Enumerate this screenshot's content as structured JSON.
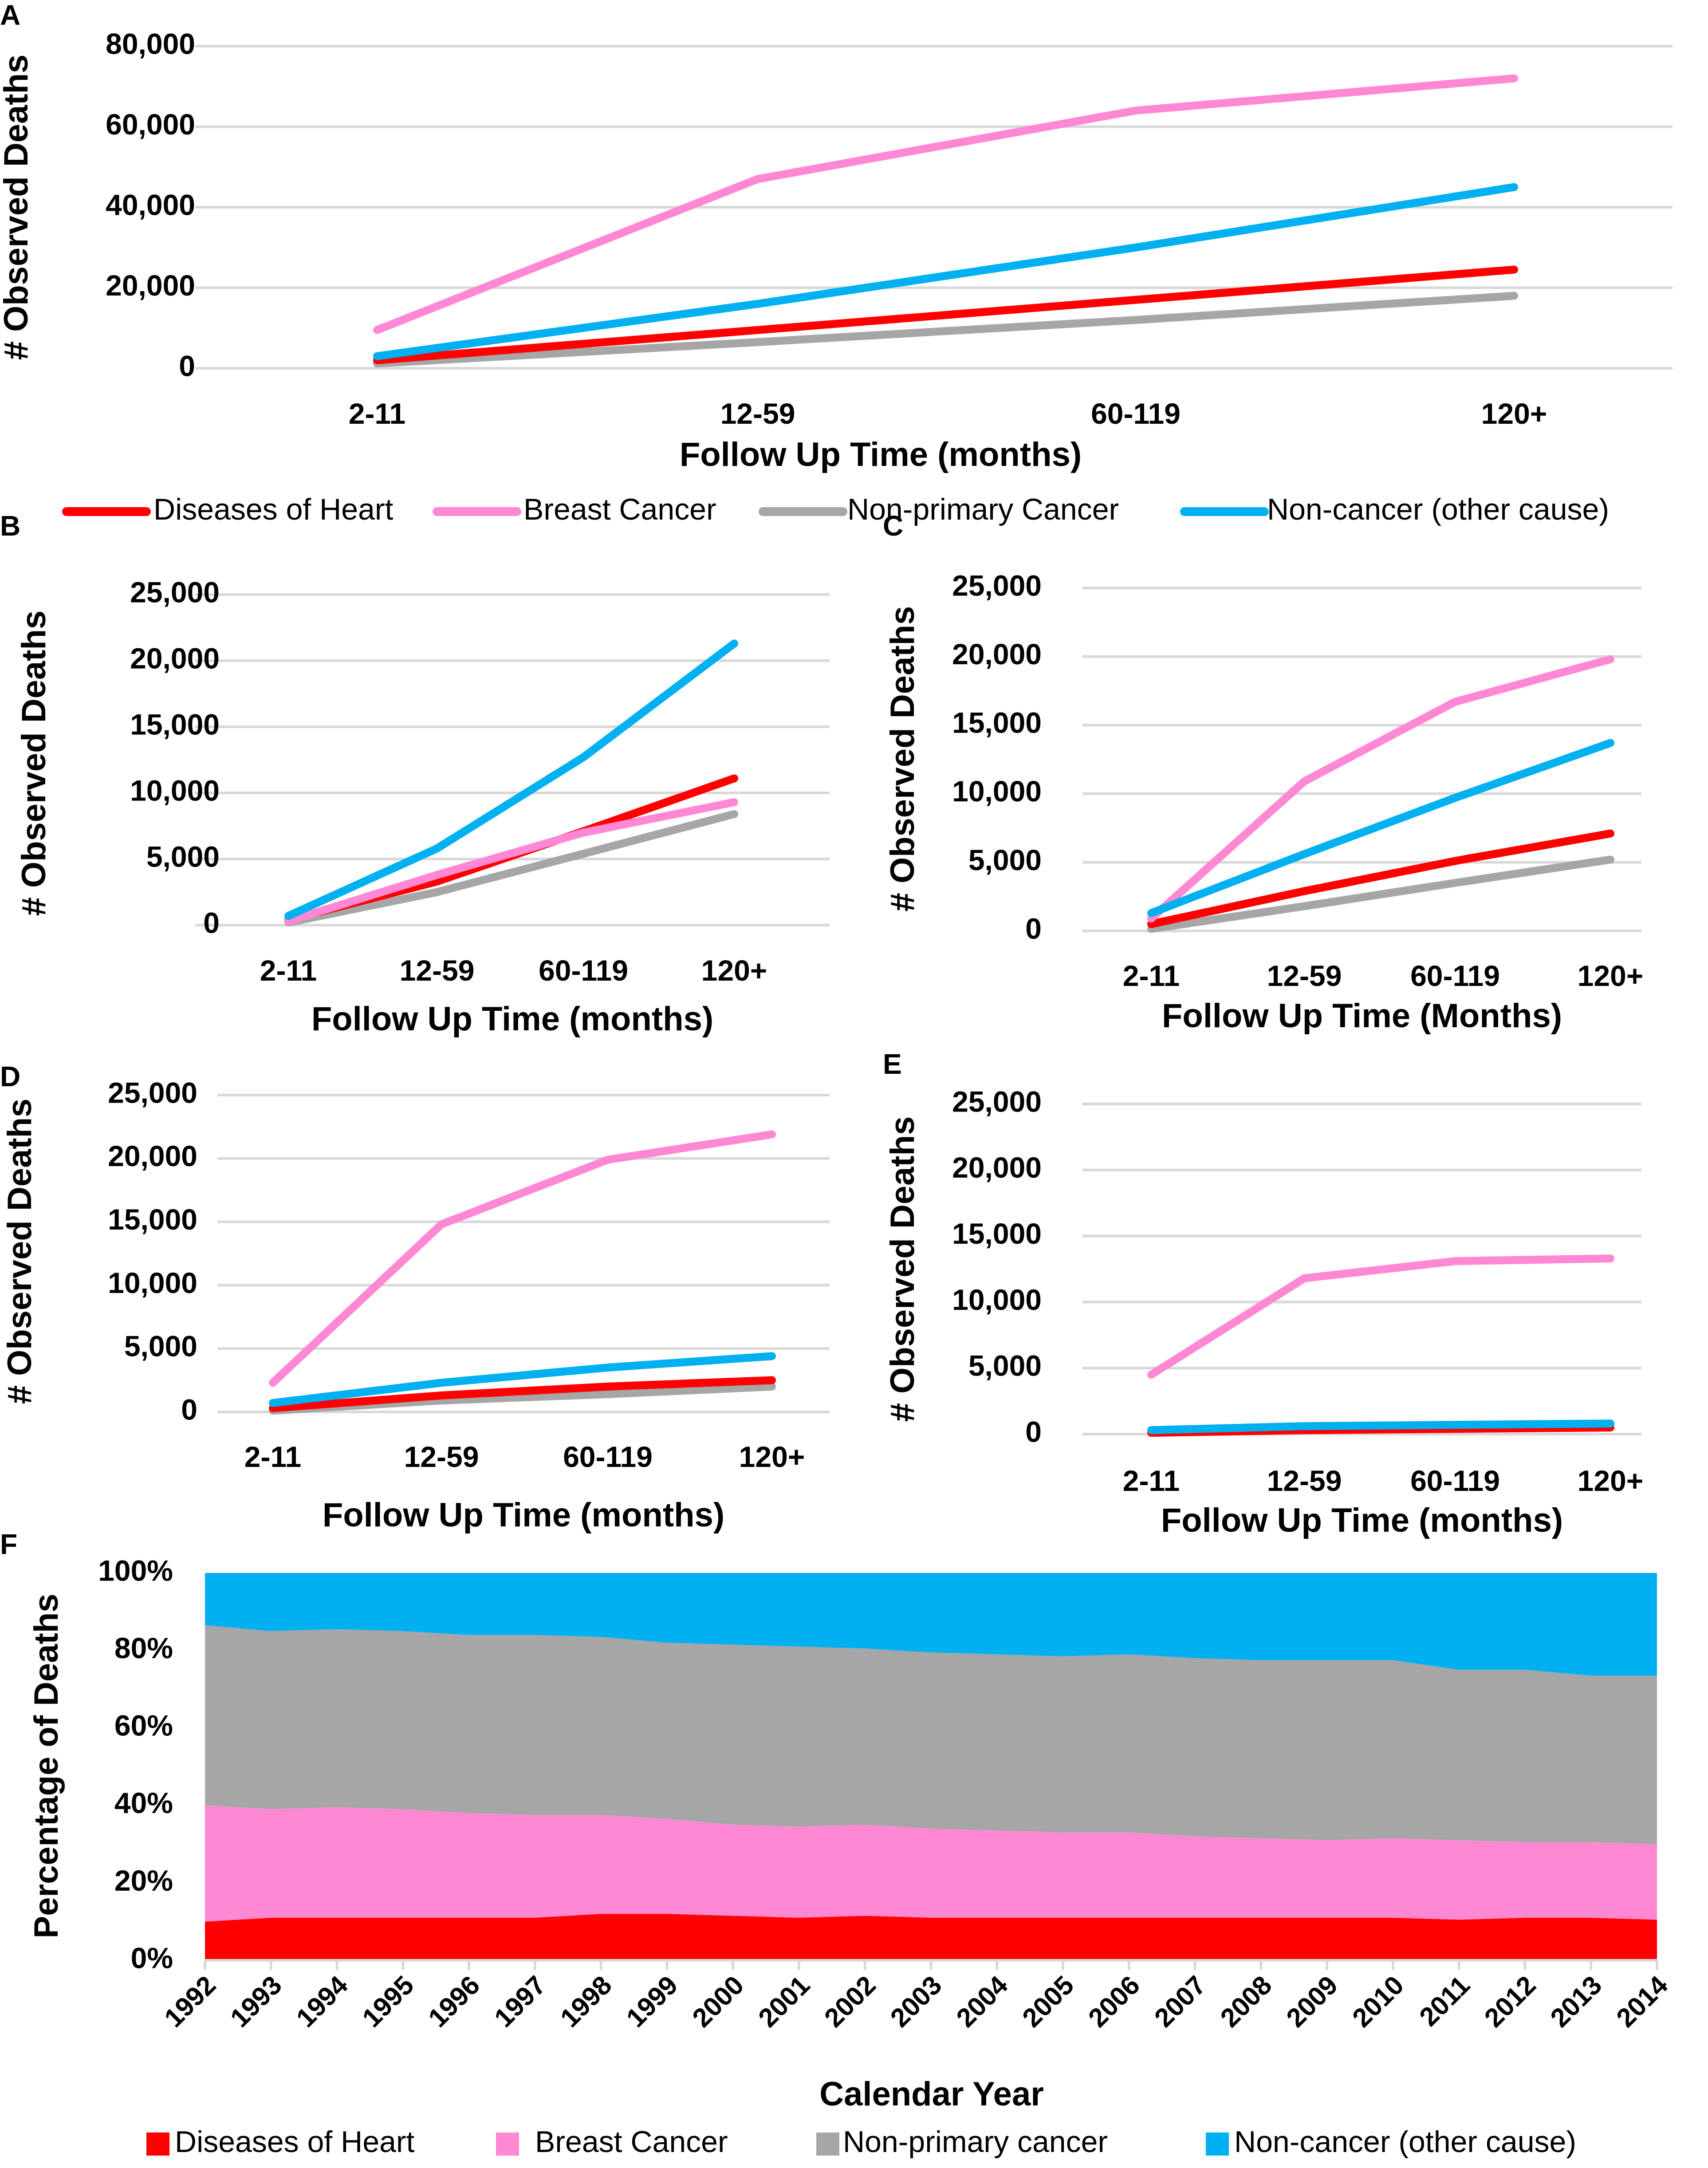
{
  "colors": {
    "heart": "#ff0000",
    "breast": "#ff88d4",
    "nonprimary": "#a6a6a6",
    "noncancer": "#00b0f0"
  },
  "legend_top": {
    "heart": "Diseases of Heart",
    "breast": "Breast Cancer",
    "nonprimary": "Non-primary Cancer",
    "noncancer": "Non-cancer (other cause)"
  },
  "legend_bottom": {
    "heart": "Diseases of Heart",
    "breast": "Breast Cancer",
    "nonprimary": "Non-primary cancer",
    "noncancer": "Non-cancer (other cause)"
  },
  "chart_data": [
    {
      "panel": "A",
      "type": "line",
      "categories": [
        "2-11",
        "12-59",
        "60-119",
        "120+"
      ],
      "xlabel": "Follow Up Time (months)",
      "ylabel": "# Observed Deaths",
      "ylim": [
        0,
        80000
      ],
      "yticks": [
        0,
        20000,
        40000,
        60000,
        80000
      ],
      "ytick_labels": [
        "0",
        "20,000",
        "40,000",
        "60,000",
        "80,000"
      ],
      "series": [
        {
          "key": "heart",
          "name": "Diseases of Heart",
          "values": [
            2000,
            9500,
            17000,
            24500
          ]
        },
        {
          "key": "breast",
          "name": "Breast Cancer",
          "values": [
            9500,
            47000,
            64000,
            72000
          ]
        },
        {
          "key": "nonprimary",
          "name": "Non-primary Cancer",
          "values": [
            1200,
            6500,
            12000,
            18000
          ]
        },
        {
          "key": "noncancer",
          "name": "Non-cancer (other cause)",
          "values": [
            3000,
            16000,
            30000,
            45000
          ]
        }
      ]
    },
    {
      "panel": "B",
      "type": "line",
      "categories": [
        "2-11",
        "12-59",
        "60-119",
        "120+"
      ],
      "xlabel": "Follow Up Time (months)",
      "ylabel": "# Observed Deaths",
      "ylim": [
        0,
        25000
      ],
      "yticks": [
        0,
        5000,
        10000,
        15000,
        20000,
        25000
      ],
      "ytick_labels": [
        "0",
        "5,000",
        "10,000",
        "15,000",
        "20,000",
        "25,000"
      ],
      "series": [
        {
          "key": "heart",
          "name": "Diseases of Heart",
          "values": [
            400,
            3300,
            7100,
            11100
          ]
        },
        {
          "key": "breast",
          "name": "Breast Cancer",
          "values": [
            300,
            3800,
            7000,
            9300
          ]
        },
        {
          "key": "nonprimary",
          "name": "Non-primary Cancer",
          "values": [
            200,
            2500,
            5400,
            8400
          ]
        },
        {
          "key": "noncancer",
          "name": "Non-cancer (other cause)",
          "values": [
            700,
            5800,
            12700,
            21300
          ]
        }
      ]
    },
    {
      "panel": "C",
      "type": "line",
      "categories": [
        "2-11",
        "12-59",
        "60-119",
        "120+"
      ],
      "xlabel": "Follow Up Time (Months)",
      "ylabel": "# Observed Deaths",
      "ylim": [
        0,
        25000
      ],
      "yticks": [
        0,
        5000,
        10000,
        15000,
        20000,
        25000
      ],
      "ytick_labels": [
        "0",
        "5,000",
        "10,000",
        "15,000",
        "20,000",
        "25,000"
      ],
      "series": [
        {
          "key": "heart",
          "name": "Diseases of Heart",
          "values": [
            500,
            2900,
            5100,
            7100
          ]
        },
        {
          "key": "breast",
          "name": "Breast Cancer",
          "values": [
            900,
            10900,
            16700,
            19800
          ]
        },
        {
          "key": "nonprimary",
          "name": "Non-primary Cancer",
          "values": [
            150,
            1800,
            3500,
            5200
          ]
        },
        {
          "key": "noncancer",
          "name": "Non-cancer (other cause)",
          "values": [
            1300,
            5600,
            9700,
            13700
          ]
        }
      ]
    },
    {
      "panel": "D",
      "type": "line",
      "categories": [
        "2-11",
        "12-59",
        "60-119",
        "120+"
      ],
      "xlabel": "Follow Up Time (months)",
      "ylabel": "# Observed Deaths",
      "ylim": [
        0,
        25000
      ],
      "yticks": [
        0,
        5000,
        10000,
        15000,
        20000,
        25000
      ],
      "ytick_labels": [
        "0",
        "5,000",
        "10,000",
        "15,000",
        "20,000",
        "25,000"
      ],
      "series": [
        {
          "key": "heart",
          "name": "Diseases of Heart",
          "values": [
            300,
            1300,
            2000,
            2500
          ]
        },
        {
          "key": "breast",
          "name": "Breast Cancer",
          "values": [
            2300,
            14800,
            19900,
            21900
          ]
        },
        {
          "key": "nonprimary",
          "name": "Non-primary Cancer",
          "values": [
            100,
            900,
            1400,
            2000
          ]
        },
        {
          "key": "noncancer",
          "name": "Non-cancer (other cause)",
          "values": [
            700,
            2300,
            3500,
            4400
          ]
        }
      ]
    },
    {
      "panel": "E",
      "type": "line",
      "categories": [
        "2-11",
        "12-59",
        "60-119",
        "120+"
      ],
      "xlabel": "Follow Up Time (months)",
      "ylabel": "# Observed Deaths",
      "ylim": [
        0,
        25000
      ],
      "yticks": [
        0,
        5000,
        10000,
        15000,
        20000,
        25000
      ],
      "ytick_labels": [
        "0",
        "5,000",
        "10,000",
        "15,000",
        "20,000",
        "25,000"
      ],
      "series": [
        {
          "key": "heart",
          "name": "Diseases of Heart",
          "values": [
            100,
            300,
            400,
            500
          ]
        },
        {
          "key": "breast",
          "name": "Breast Cancer",
          "values": [
            4500,
            11800,
            13100,
            13300
          ]
        },
        {
          "key": "nonprimary",
          "name": "Non-primary Cancer",
          "values": [
            100,
            300,
            400,
            500
          ]
        },
        {
          "key": "noncancer",
          "name": "Non-cancer (other cause)",
          "values": [
            300,
            600,
            700,
            800
          ]
        }
      ]
    },
    {
      "panel": "F",
      "type": "area",
      "stacked": true,
      "x": [
        "1992",
        "1993",
        "1994",
        "1995",
        "1996",
        "1997",
        "1998",
        "1999",
        "2000",
        "2001",
        "2002",
        "2003",
        "2004",
        "2005",
        "2006",
        "2007",
        "2008",
        "2009",
        "2010",
        "2011",
        "2012",
        "2013",
        "2014"
      ],
      "xlabel": "Calendar Year",
      "ylabel": "Percentage of Deaths",
      "ylim": [
        0,
        100
      ],
      "yticks": [
        0,
        20,
        40,
        60,
        80,
        100
      ],
      "ytick_labels": [
        "0%",
        "20%",
        "40%",
        "60%",
        "80%",
        "100%"
      ],
      "series": [
        {
          "key": "heart",
          "name": "Diseases of Heart",
          "values": [
            10,
            11,
            11,
            11,
            11,
            11,
            12,
            12,
            11.5,
            11,
            11.5,
            11,
            11,
            11,
            11,
            11,
            11,
            11,
            11,
            10.5,
            11,
            11,
            10.5
          ]
        },
        {
          "key": "breast",
          "name": "Breast Cancer",
          "values": [
            30,
            28,
            28.5,
            28,
            27,
            26.5,
            25.5,
            24.5,
            23.5,
            23.5,
            23.5,
            23,
            22.5,
            22,
            22,
            21,
            20.5,
            20,
            20.5,
            20.5,
            19.5,
            19.5,
            19.5
          ]
        },
        {
          "key": "nonprimary",
          "name": "Non-primary cancer",
          "values": [
            46.5,
            46,
            46,
            46,
            46,
            46.5,
            46,
            45.5,
            46.5,
            46.5,
            45.5,
            45.5,
            45.5,
            45.5,
            46,
            46,
            46,
            46.5,
            46,
            44,
            44.5,
            43,
            43.5
          ]
        },
        {
          "key": "noncancer",
          "name": "Non-cancer (other cause)",
          "values": [
            13.5,
            15,
            14.5,
            15,
            16,
            16,
            16.5,
            18,
            18.5,
            19,
            19.5,
            20.5,
            21,
            21.5,
            21,
            22,
            22.5,
            22.5,
            22.5,
            25,
            25,
            26.5,
            26.5
          ]
        }
      ]
    }
  ]
}
